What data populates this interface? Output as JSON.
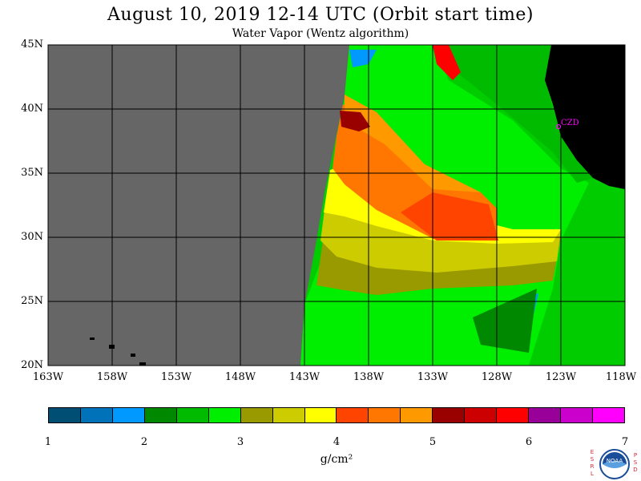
{
  "header": {
    "title": "August 10, 2019  12-14 UTC  (Orbit start time)",
    "subtitle": "Water Vapor (Wentz algorithm)"
  },
  "map": {
    "lat_labels": [
      "45N",
      "40N",
      "35N",
      "30N",
      "25N",
      "20N"
    ],
    "lon_labels": [
      "163W",
      "158W",
      "153W",
      "148W",
      "143W",
      "138W",
      "133W",
      "128W",
      "123W",
      "118W"
    ],
    "station_label": "CZD",
    "colors": {
      "no_data": "#666666",
      "land": "#000000",
      "station": "#ff00ff"
    }
  },
  "colorbar": {
    "colors": [
      "#004e73",
      "#0072b9",
      "#0099ff",
      "#008800",
      "#00bb00",
      "#00ee00",
      "#999900",
      "#cccc00",
      "#ffff00",
      "#ff4400",
      "#ff7700",
      "#ff9900",
      "#990000",
      "#cc0000",
      "#ff0000",
      "#990099",
      "#cc00cc",
      "#ff00ff"
    ],
    "tick_labels": [
      "1",
      "2",
      "3",
      "4",
      "5",
      "6",
      "7"
    ],
    "units": "g/cm²"
  },
  "logo": {
    "left_letters": [
      "E",
      "S",
      "R",
      "L"
    ],
    "right_letters": [
      "P",
      "S",
      "D"
    ],
    "center_text": "NOAA"
  }
}
